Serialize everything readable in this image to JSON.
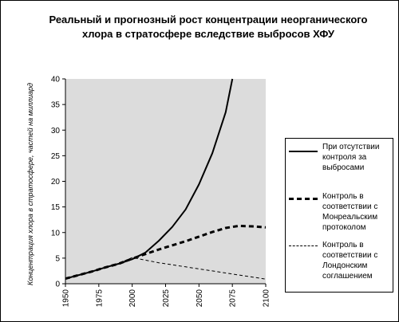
{
  "chart_data": {
    "type": "line",
    "title": "Реальный и прогнозный рост концентрации неорганического хлора в стратосфере вследствие выбросов ХФУ",
    "xlabel": "",
    "ylabel": "Концентрация хлора в стратосфере, частей на миллиард",
    "xlim": [
      1950,
      2100
    ],
    "ylim": [
      0,
      40
    ],
    "x_ticks": [
      1950,
      1975,
      2000,
      2025,
      2050,
      2075,
      2100
    ],
    "y_ticks": [
      0,
      5,
      10,
      15,
      20,
      25,
      30,
      35,
      40
    ],
    "grid": false,
    "plot_background": "#dcdcdc",
    "legend_position": "right",
    "series": [
      {
        "name": "При отсутствии контроля за выбросами",
        "style": "solid",
        "x": [
          1950,
          1960,
          1970,
          1980,
          1990,
          2000,
          2010,
          2020,
          2030,
          2040,
          2050,
          2060,
          2070,
          2075
        ],
        "y": [
          1,
          1.7,
          2.4,
          3.2,
          3.9,
          4.8,
          6.1,
          8.4,
          11.1,
          14.5,
          19.4,
          25.5,
          33.5,
          40
        ]
      },
      {
        "name": "Контроль в соответствии с Монреальским протоколом",
        "style": "dashed",
        "x": [
          1950,
          1960,
          1970,
          1980,
          1990,
          2000,
          2010,
          2020,
          2030,
          2040,
          2050,
          2060,
          2070,
          2080,
          2090,
          2100
        ],
        "y": [
          1,
          1.7,
          2.4,
          3.2,
          3.9,
          4.9,
          5.8,
          6.7,
          7.5,
          8.3,
          9.2,
          10.1,
          10.9,
          11.3,
          11.2,
          11.0
        ]
      },
      {
        "name": "Контроль в соответствии с Лондонским соглашением",
        "style": "thin-dashed",
        "x": [
          1950,
          1960,
          1970,
          1980,
          1990,
          2000,
          2010,
          2020,
          2030,
          2040,
          2050,
          2060,
          2070,
          2080,
          2090,
          2100
        ],
        "y": [
          1,
          1.7,
          2.4,
          3.2,
          4.0,
          5.1,
          4.6,
          4.1,
          3.7,
          3.3,
          2.9,
          2.5,
          2.1,
          1.7,
          1.3,
          0.9
        ]
      }
    ]
  }
}
